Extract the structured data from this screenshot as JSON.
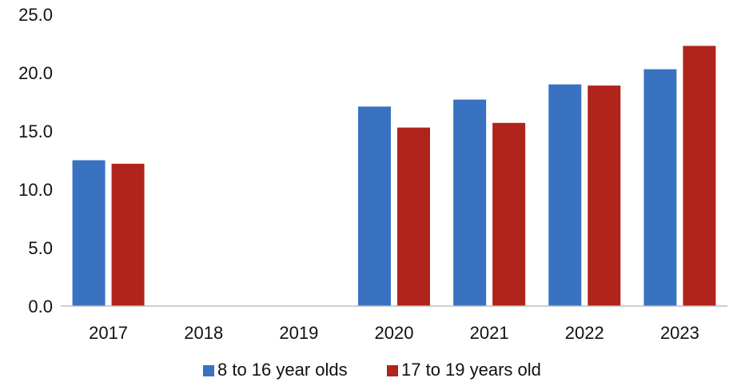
{
  "chart_data": {
    "type": "bar",
    "title": "",
    "xlabel": "",
    "ylabel": "",
    "categories": [
      "2017",
      "2018",
      "2019",
      "2020",
      "2021",
      "2022",
      "2023"
    ],
    "ylim": [
      0,
      25
    ],
    "yticks": [
      "0.0",
      "5.0",
      "10.0",
      "15.0",
      "20.0",
      "25.0"
    ],
    "ytick_values": [
      0,
      5,
      10,
      15,
      20,
      25
    ],
    "grid": false,
    "legend_position": "bottom",
    "series": [
      {
        "name": "8 to 16 year olds",
        "color": "#3A72C2",
        "values": [
          12.5,
          null,
          null,
          17.1,
          17.7,
          19.0,
          20.3
        ]
      },
      {
        "name": "17 to 19 years old",
        "color": "#B0241B",
        "values": [
          12.2,
          null,
          null,
          15.3,
          15.7,
          18.9,
          22.3
        ]
      }
    ]
  }
}
